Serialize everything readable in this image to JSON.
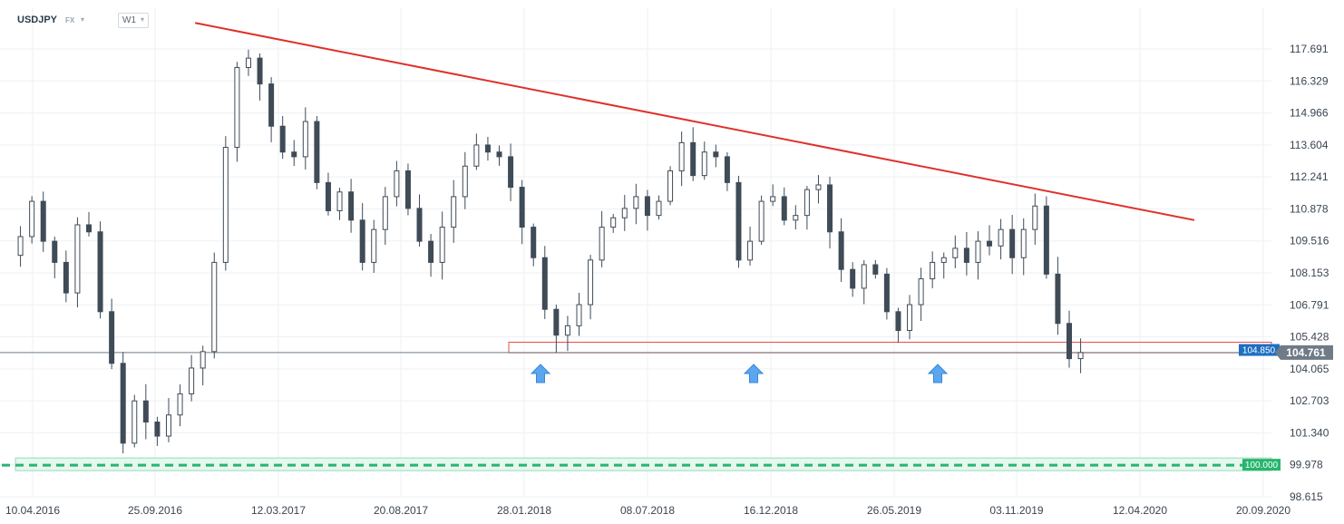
{
  "header": {
    "symbol": "USDJPY",
    "market": "FX",
    "market_caret": "▾",
    "timeframe": "W1",
    "timeframe_caret": "▾"
  },
  "chart_data": {
    "type": "candlestick",
    "instrument": "USDJPY",
    "timeframe": "W1",
    "y_ticks": [
      "117.691",
      "116.329",
      "114.966",
      "113.604",
      "112.241",
      "110.878",
      "109.516",
      "108.153",
      "106.791",
      "105.428",
      "104.065",
      "102.703",
      "101.340",
      "99.978",
      "98.615"
    ],
    "y_tick_values": [
      117.691,
      116.329,
      114.966,
      113.604,
      112.241,
      110.878,
      109.516,
      108.153,
      106.791,
      105.428,
      104.065,
      102.703,
      101.34,
      99.978,
      98.615
    ],
    "ylim": [
      98.3,
      119.2
    ],
    "x_ticks": [
      "10.04.2016",
      "25.09.2016",
      "12.03.2017",
      "20.08.2017",
      "28.01.2018",
      "08.07.2018",
      "16.12.2018",
      "26.05.2019",
      "03.11.2019",
      "12.04.2020",
      "20.09.2020"
    ],
    "current_price": "104.761",
    "current_price_value": 104.761,
    "support_label": "104.850",
    "support_value": 104.85,
    "level_label": "100.000",
    "level_value": 100.0,
    "trendline": {
      "start": [
        2.0,
        118.8
      ],
      "end": [
        61.6,
        110.4
      ]
    },
    "support_zone": [
      104.75,
      105.2
    ],
    "price_path": [
      [
        0,
        108.9
      ],
      [
        1,
        109.7
      ],
      [
        2,
        111.2
      ],
      [
        3,
        109.5
      ],
      [
        4,
        108.6
      ],
      [
        5,
        107.3
      ],
      [
        6,
        110.2
      ],
      [
        7,
        109.9
      ],
      [
        8,
        106.5
      ],
      [
        9,
        104.3
      ],
      [
        10,
        100.9
      ],
      [
        11,
        102.7
      ],
      [
        12,
        101.8
      ],
      [
        13,
        101.2
      ],
      [
        14,
        102.1
      ],
      [
        15,
        103.0
      ],
      [
        16,
        104.1
      ],
      [
        17,
        104.8
      ],
      [
        18,
        108.6
      ],
      [
        19,
        113.5
      ],
      [
        20,
        116.9
      ],
      [
        21,
        117.3
      ],
      [
        22,
        116.2
      ],
      [
        23,
        114.4
      ],
      [
        24,
        113.3
      ],
      [
        25,
        113.1
      ],
      [
        26,
        114.6
      ],
      [
        27,
        112.0
      ],
      [
        28,
        110.8
      ],
      [
        29,
        111.6
      ],
      [
        30,
        110.4
      ],
      [
        31,
        108.6
      ],
      [
        32,
        110.0
      ],
      [
        33,
        111.4
      ],
      [
        34,
        112.5
      ],
      [
        35,
        110.9
      ],
      [
        36,
        109.5
      ],
      [
        37,
        108.6
      ],
      [
        38,
        110.1
      ],
      [
        39,
        111.4
      ],
      [
        40,
        112.7
      ],
      [
        41,
        113.6
      ],
      [
        42,
        113.3
      ],
      [
        43,
        113.1
      ],
      [
        44,
        111.8
      ],
      [
        45,
        110.1
      ],
      [
        46,
        108.8
      ],
      [
        47,
        106.6
      ],
      [
        48,
        105.5
      ],
      [
        49,
        105.9
      ],
      [
        50,
        106.8
      ],
      [
        51,
        108.7
      ],
      [
        52,
        110.1
      ],
      [
        53,
        110.5
      ],
      [
        54,
        110.9
      ],
      [
        55,
        111.4
      ],
      [
        56,
        110.6
      ],
      [
        57,
        111.2
      ],
      [
        58,
        112.5
      ],
      [
        59,
        113.7
      ],
      [
        60,
        112.3
      ],
      [
        61,
        113.3
      ],
      [
        62,
        113.1
      ],
      [
        63,
        112.0
      ],
      [
        64,
        108.7
      ],
      [
        65,
        109.5
      ],
      [
        66,
        111.2
      ],
      [
        67,
        111.4
      ],
      [
        68,
        110.4
      ],
      [
        69,
        110.6
      ],
      [
        70,
        111.7
      ],
      [
        71,
        111.9
      ],
      [
        72,
        109.9
      ],
      [
        73,
        108.3
      ],
      [
        74,
        107.5
      ],
      [
        75,
        108.5
      ],
      [
        76,
        108.1
      ],
      [
        77,
        106.5
      ],
      [
        78,
        105.7
      ],
      [
        79,
        106.8
      ],
      [
        80,
        107.9
      ],
      [
        81,
        108.6
      ],
      [
        82,
        108.8
      ],
      [
        83,
        109.2
      ],
      [
        84,
        108.6
      ],
      [
        85,
        109.5
      ],
      [
        86,
        109.3
      ],
      [
        87,
        110.0
      ],
      [
        88,
        108.8
      ],
      [
        89,
        110.0
      ],
      [
        90,
        111.0
      ],
      [
        91,
        108.1
      ],
      [
        92,
        106.0
      ],
      [
        93,
        104.5
      ],
      [
        94,
        104.76
      ]
    ],
    "reaction_markers": [
      "arrow-up",
      "arrow-up",
      "arrow-up"
    ],
    "colors": {
      "trendline": "#e0302a",
      "level": "#27b56f",
      "support_zone": "#e84c4c",
      "support_tag": "#1c6fc0",
      "price_tag": "#6f7b86",
      "candle": "#3f4b57",
      "arrow": "#5aa7f0"
    }
  }
}
